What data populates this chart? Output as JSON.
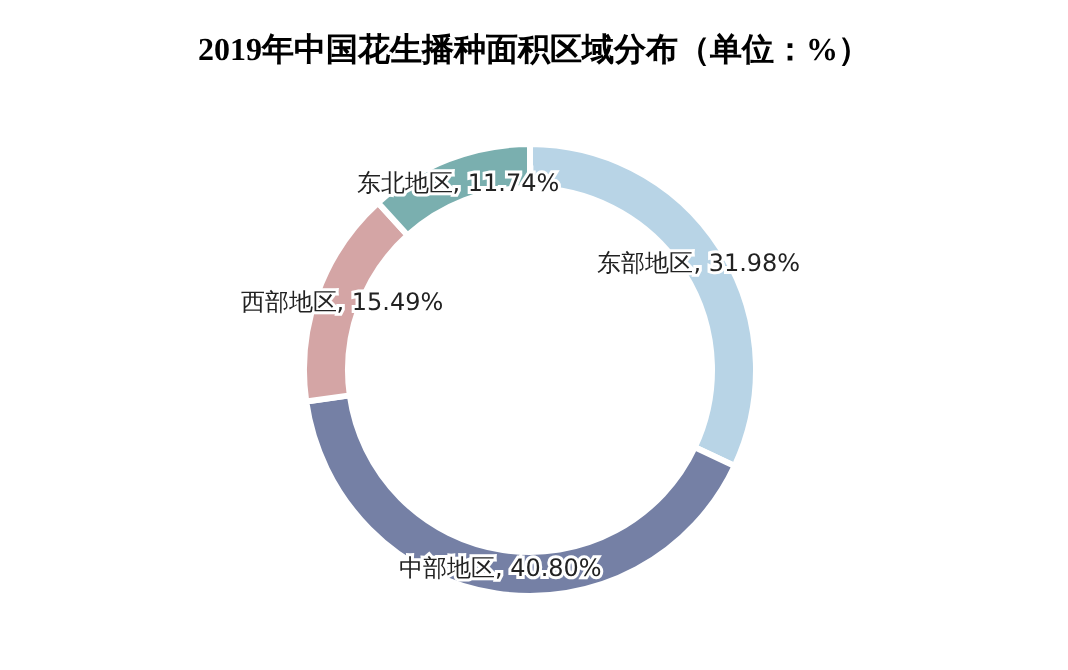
{
  "chart_data": {
    "type": "donut",
    "title": "2019年中国花生播种面积区域分布（单位：%）",
    "categories": [
      "东部地区, 31.98%",
      "中部地区, 40.80%",
      "西部地区, 15.49%",
      "东北地区, 11.74%"
    ],
    "values": [
      31.98,
      40.8,
      15.49,
      11.74
    ],
    "colors": [
      "#b8d4e6",
      "#7580a5",
      "#d4a5a5",
      "#7aafaf"
    ]
  }
}
